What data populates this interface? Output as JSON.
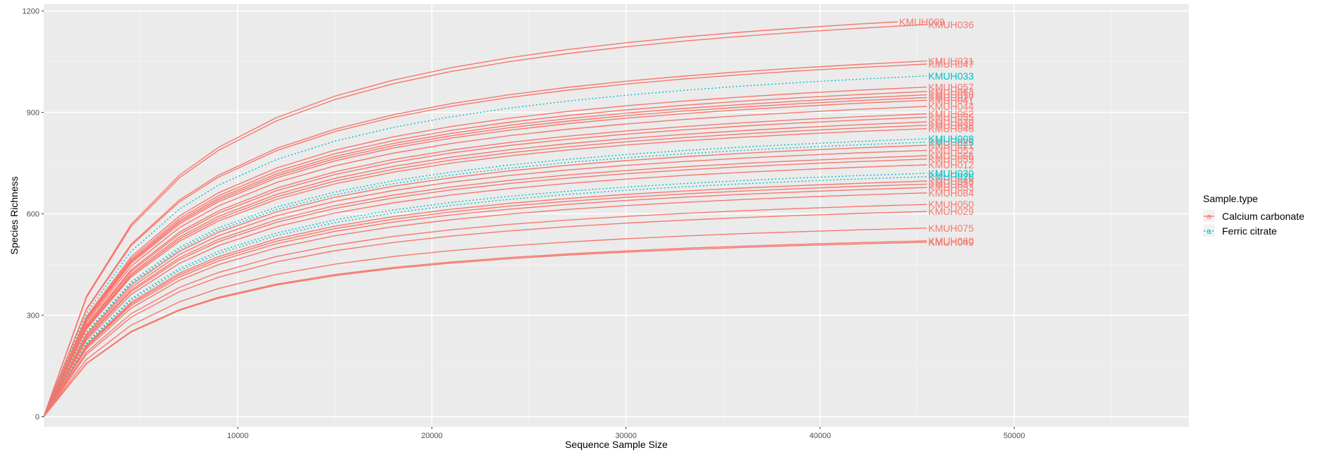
{
  "chart_data": {
    "type": "line",
    "xlabel": "Sequence Sample Size",
    "ylabel": "Species Richness",
    "xlim": [
      0,
      59000
    ],
    "ylim": [
      -30,
      1220
    ],
    "x_ticks": [
      10000,
      20000,
      30000,
      40000,
      50000
    ],
    "y_ticks": [
      0,
      300,
      600,
      900,
      1200
    ],
    "grid": true,
    "legend_position": "right",
    "legend": {
      "title": "Sample.type",
      "entries": [
        {
          "label": "Calcium carbonate",
          "color": "#F8766D",
          "style": "solid",
          "key_glyph": "a"
        },
        {
          "label": "Ferric citrate",
          "color": "#00BFC4",
          "style": "dotted",
          "key_glyph": "a"
        }
      ]
    },
    "series": [
      {
        "name": "KMUH009",
        "group": "Calcium carbonate",
        "end_x": 44000,
        "final": 1168
      },
      {
        "name": "KMUH036",
        "group": "Calcium carbonate",
        "end_x": 45500,
        "final": 1160
      },
      {
        "name": "KMUH031",
        "group": "Calcium carbonate",
        "end_x": 45500,
        "final": 1052
      },
      {
        "name": "KMUH047",
        "group": "Calcium carbonate",
        "end_x": 45500,
        "final": 1043
      },
      {
        "name": "KMUH033",
        "group": "Ferric citrate",
        "end_x": 45500,
        "final": 1008
      },
      {
        "name": "KMUH057",
        "group": "Calcium carbonate",
        "end_x": 45500,
        "final": 975
      },
      {
        "name": "KMUH063",
        "group": "Calcium carbonate",
        "end_x": 45500,
        "final": 962
      },
      {
        "name": "KMUH018",
        "group": "Calcium carbonate",
        "end_x": 45500,
        "final": 952
      },
      {
        "name": "KMUH027",
        "group": "Calcium carbonate",
        "end_x": 45500,
        "final": 944
      },
      {
        "name": "KMUH041",
        "group": "Calcium carbonate",
        "end_x": 45500,
        "final": 936
      },
      {
        "name": "KMUH044",
        "group": "Calcium carbonate",
        "end_x": 45500,
        "final": 918
      },
      {
        "name": "KMUH062",
        "group": "Calcium carbonate",
        "end_x": 45500,
        "final": 896
      },
      {
        "name": "KMUH055",
        "group": "Calcium carbonate",
        "end_x": 45500,
        "final": 886
      },
      {
        "name": "KMUH039",
        "group": "Calcium carbonate",
        "end_x": 45500,
        "final": 872
      },
      {
        "name": "KMUH058",
        "group": "Calcium carbonate",
        "end_x": 45500,
        "final": 862
      },
      {
        "name": "KMUH046",
        "group": "Calcium carbonate",
        "end_x": 45500,
        "final": 852
      },
      {
        "name": "KMUH008",
        "group": "Ferric citrate",
        "end_x": 45500,
        "final": 822
      },
      {
        "name": "KMUH025",
        "group": "Ferric citrate",
        "end_x": 45500,
        "final": 812
      },
      {
        "name": "KMUH021",
        "group": "Calcium carbonate",
        "end_x": 45500,
        "final": 803
      },
      {
        "name": "KMUH052",
        "group": "Calcium carbonate",
        "end_x": 45500,
        "final": 788
      },
      {
        "name": "KMUH066",
        "group": "Calcium carbonate",
        "end_x": 45500,
        "final": 772
      },
      {
        "name": "KMUH059",
        "group": "Calcium carbonate",
        "end_x": 45500,
        "final": 762
      },
      {
        "name": "KMUH012",
        "group": "Calcium carbonate",
        "end_x": 45500,
        "final": 745
      },
      {
        "name": "KMUH030",
        "group": "Ferric citrate",
        "end_x": 45500,
        "final": 720
      },
      {
        "name": "KMUH026",
        "group": "Ferric citrate",
        "end_x": 45500,
        "final": 710
      },
      {
        "name": "KMUH048",
        "group": "Calcium carbonate",
        "end_x": 45500,
        "final": 697
      },
      {
        "name": "KMUH037",
        "group": "Calcium carbonate",
        "end_x": 45500,
        "final": 688
      },
      {
        "name": "KMUH053",
        "group": "Calcium carbonate",
        "end_x": 45500,
        "final": 678
      },
      {
        "name": "KMUH084",
        "group": "Calcium carbonate",
        "end_x": 45500,
        "final": 662
      },
      {
        "name": "KMUH050",
        "group": "Calcium carbonate",
        "end_x": 45500,
        "final": 628
      },
      {
        "name": "KMUH029",
        "group": "Calcium carbonate",
        "end_x": 45500,
        "final": 607
      },
      {
        "name": "KMUH075",
        "group": "Calcium carbonate",
        "end_x": 45500,
        "final": 558
      },
      {
        "name": "KMUH060",
        "group": "Calcium carbonate",
        "end_x": 45500,
        "final": 520
      },
      {
        "name": "KMUH049",
        "group": "Calcium carbonate",
        "end_x": 45500,
        "final": 516
      }
    ]
  }
}
